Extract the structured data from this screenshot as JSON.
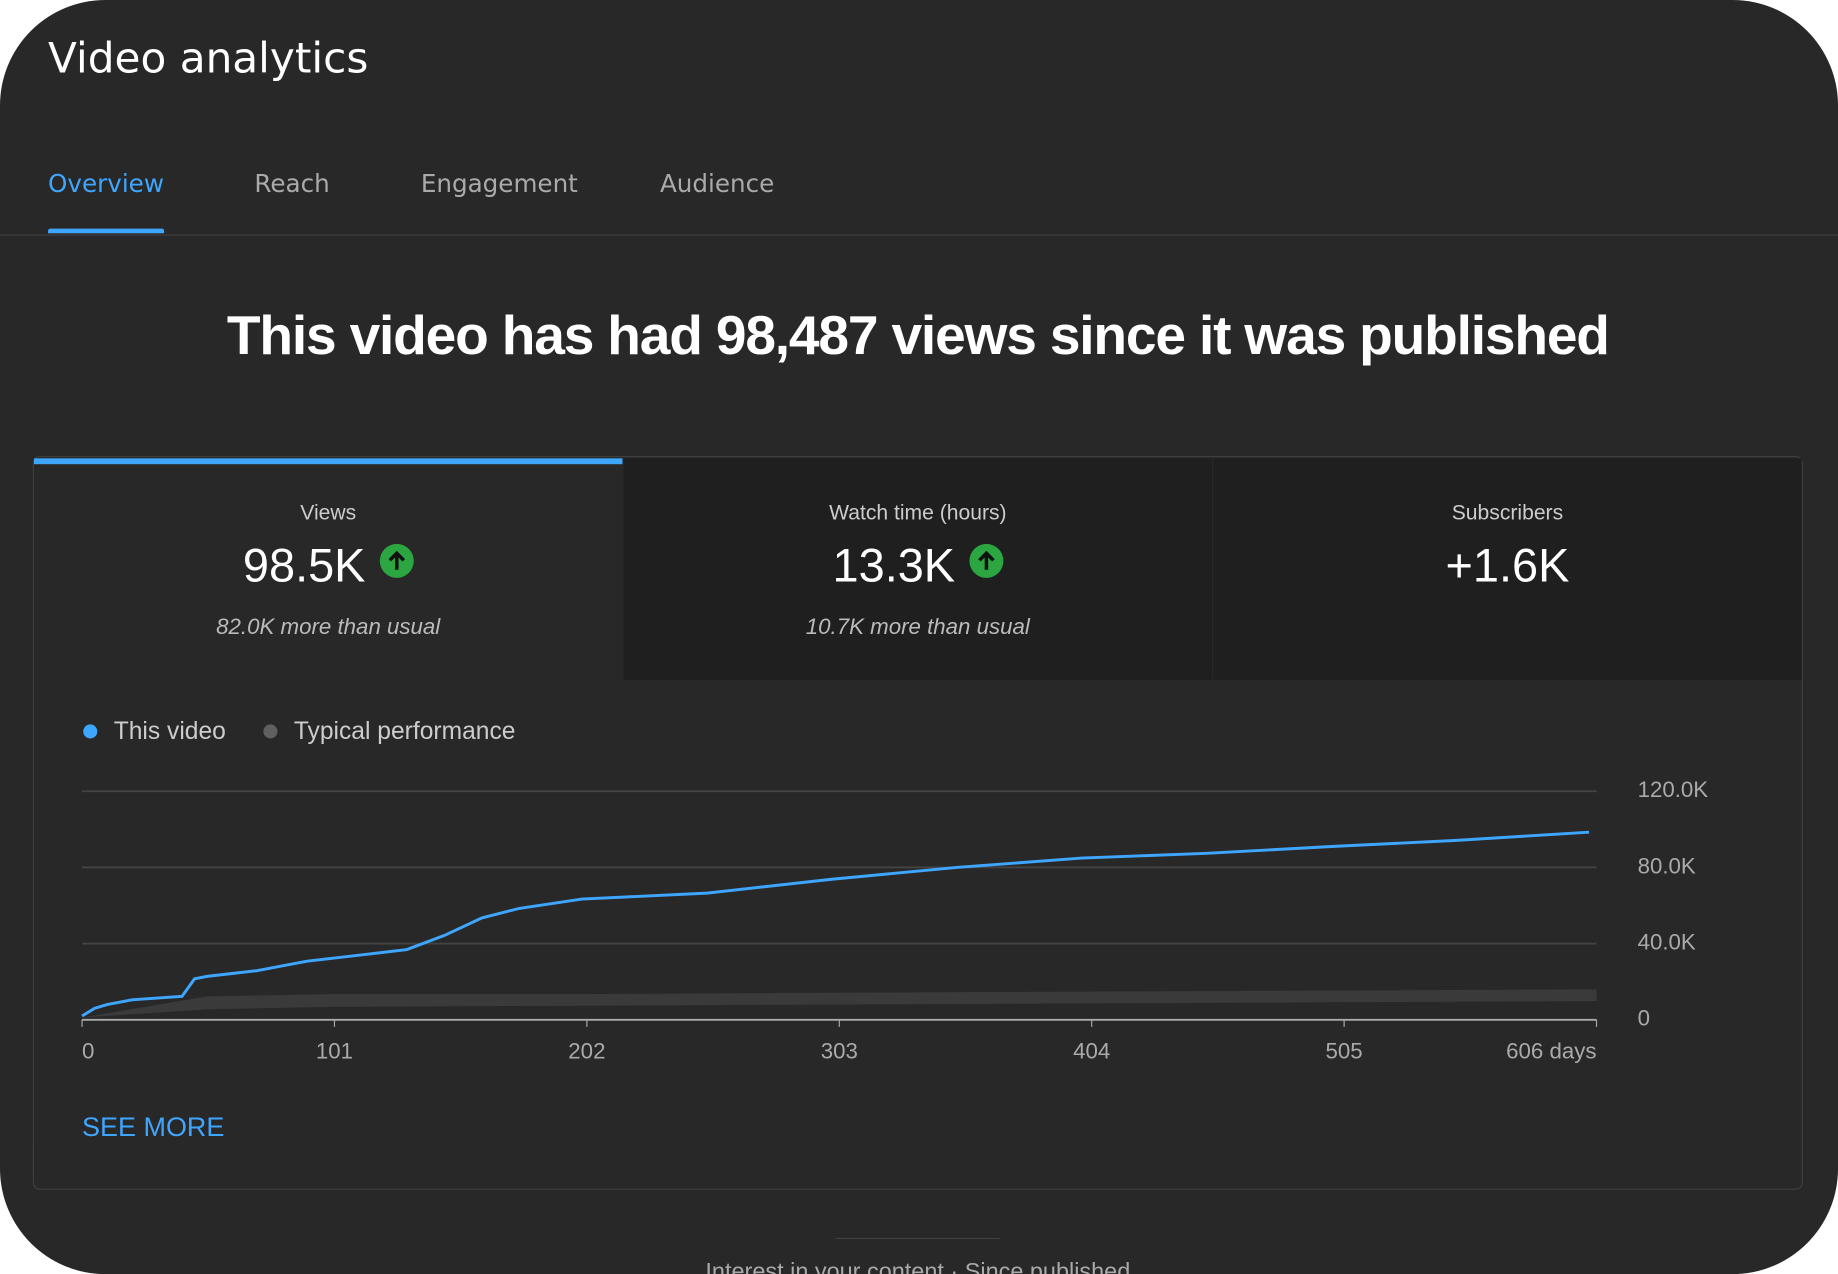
{
  "header": {
    "title": "Video analytics"
  },
  "tabs": [
    {
      "label": "Overview",
      "selected": true
    },
    {
      "label": "Reach"
    },
    {
      "label": "Engagement"
    },
    {
      "label": "Audience"
    }
  ],
  "headline": "This video has had 98,487 views since it was published",
  "cards": [
    {
      "label": "Views",
      "value": "98.5K",
      "up": true,
      "note": "82.0K more than usual",
      "selected": true
    },
    {
      "label": "Watch time (hours)",
      "value": "13.3K",
      "up": true,
      "note": "10.7K more than usual"
    },
    {
      "label": "Subscribers",
      "value": "+1.6K"
    }
  ],
  "chart_data": {
    "type": "line",
    "x": [
      0,
      5,
      10,
      20,
      40,
      45,
      50,
      70,
      90,
      110,
      130,
      145,
      160,
      175,
      200,
      250,
      300,
      350,
      400,
      450,
      500,
      550,
      603
    ],
    "series": [
      {
        "name": "This video",
        "color": "#3ea6ff",
        "values": [
          2000,
          6000,
          8000,
          10500,
          12300,
          21500,
          22800,
          25800,
          30800,
          33800,
          36900,
          44300,
          53500,
          58500,
          63400,
          66500,
          73800,
          80000,
          84900,
          87400,
          91000,
          94200,
          98500
        ]
      },
      {
        "name": "Typical performance",
        "color": "#606060",
        "band_color": "#3a3a3a",
        "band_x": [
          0,
          50,
          100,
          200,
          300,
          400,
          500,
          606
        ],
        "upper": [
          1200,
          12300,
          13500,
          13500,
          14200,
          14800,
          15400,
          16000
        ],
        "lower": [
          1200,
          5500,
          6800,
          7400,
          8000,
          8600,
          9200,
          9800
        ]
      }
    ],
    "xlim": [
      0,
      606
    ],
    "xticks": [
      0,
      101,
      202,
      303,
      404,
      505,
      {
        "value": 606,
        "label": "606 days"
      }
    ],
    "ylim": [
      0,
      120000
    ],
    "yticks": [
      0,
      {
        "value": 40000,
        "label": "40.0K"
      },
      {
        "value": 80000,
        "label": "80.0K"
      },
      {
        "value": 120000,
        "label": "120.0K"
      }
    ],
    "grid": true
  },
  "see_more": "SEE MORE",
  "footer_text": "Interest in your content · Since published"
}
